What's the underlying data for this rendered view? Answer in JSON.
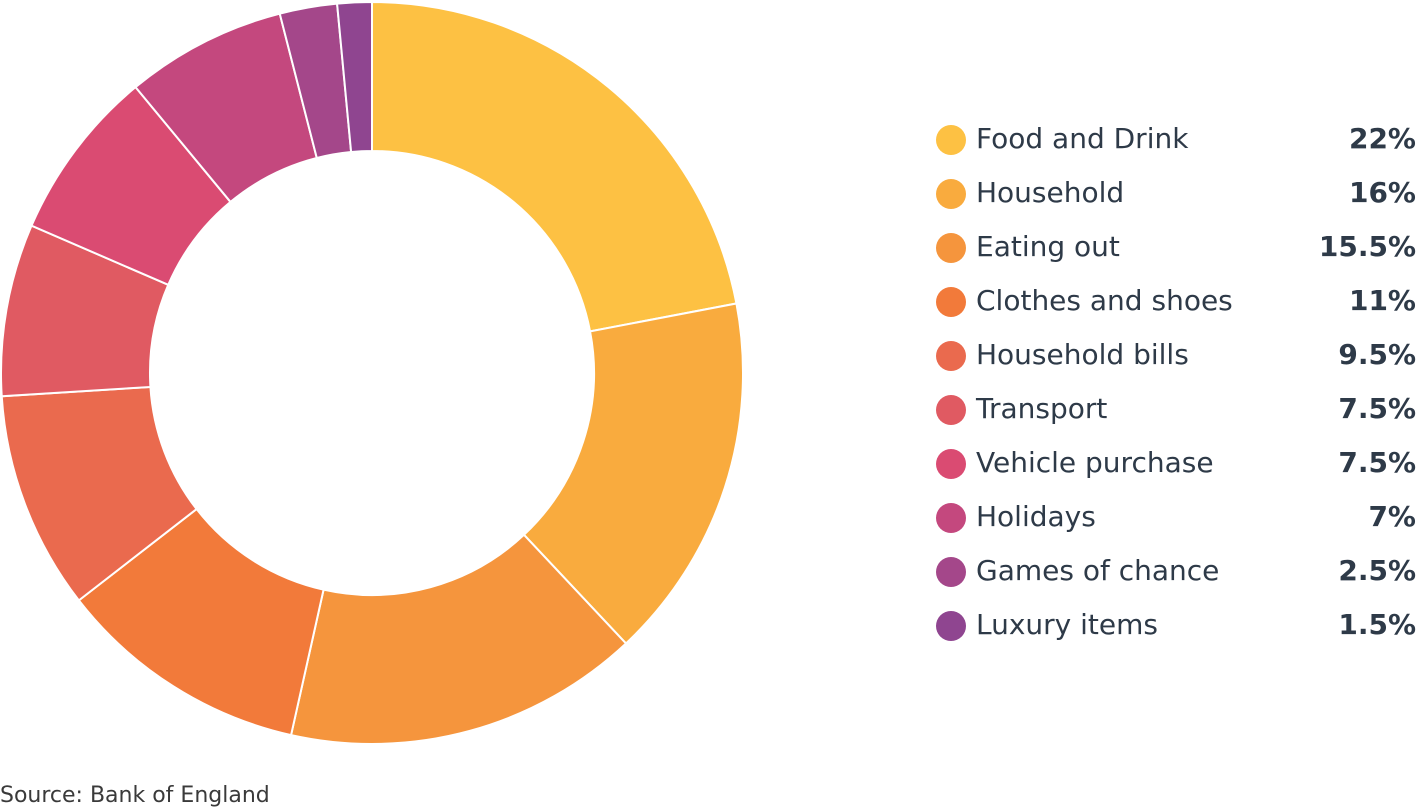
{
  "chart_data": {
    "type": "donut",
    "categories": [
      "Food and Drink",
      "Household",
      "Eating out",
      "Clothes and shoes",
      "Household bills",
      "Transport",
      "Vehicle purchase",
      "Holidays",
      "Games of chance",
      "Luxury items"
    ],
    "values": [
      22,
      16,
      15.5,
      11,
      9.5,
      7.5,
      7.5,
      7,
      2.5,
      1.5
    ],
    "value_labels": [
      "22%",
      "16%",
      "15.5%",
      "11%",
      "9.5%",
      "7.5%",
      "7.5%",
      "7%",
      "2.5%",
      "1.5%"
    ],
    "colors": [
      "#fdc143",
      "#f9ab3e",
      "#f5953d",
      "#f27a3a",
      "#ea6a4e",
      "#e05a62",
      "#da4b72",
      "#c4487e",
      "#a4478a",
      "#8f4590"
    ],
    "legend": "right",
    "source": "Source: Bank of England"
  }
}
